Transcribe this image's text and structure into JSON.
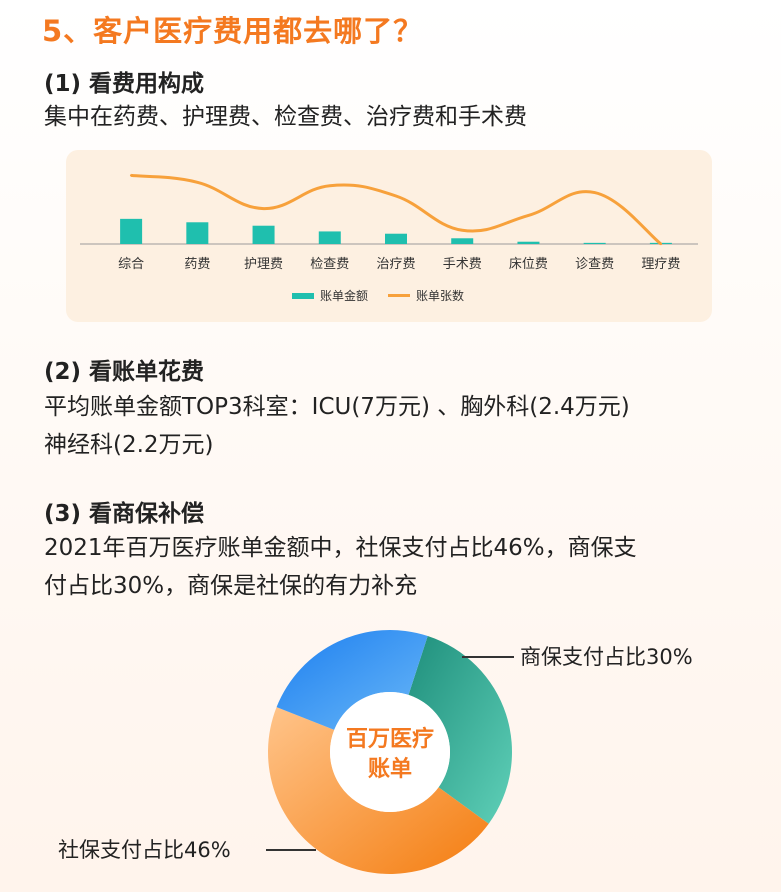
{
  "header": {
    "title": "5、客户医疗费用都去哪了？"
  },
  "section1": {
    "title": "(1) 看费用构成",
    "text": "集中在药费、护理费、检查费、治疗费和手术费"
  },
  "section2": {
    "title": "(2) 看账单花费",
    "line1": "平均账单金额TOP3科室：ICU(7万元) 、胸外科(2.4万元)",
    "line2": "神经科(2.2万元)"
  },
  "section3": {
    "title": "(3) 看商保补偿",
    "line1": "2021年百万医疗账单金额中，社保支付占比46%，商保支",
    "line2": "付占比30%，商保是社保的有力补充"
  },
  "colors": {
    "accent": "#f47920",
    "bar": "#1fbfae",
    "line": "#f7a13b"
  },
  "chart_data": [
    {
      "type": "bar",
      "categories": [
        "综合",
        "药费",
        "护理费",
        "检查费",
        "治疗费",
        "手术费",
        "床位费",
        "诊查费",
        "理疗费"
      ],
      "series": [
        {
          "name": "账单金额",
          "type": "bar",
          "values": [
            22,
            19,
            16,
            11,
            9,
            5,
            2,
            1,
            1
          ]
        },
        {
          "name": "账单张数",
          "type": "line",
          "values": [
            60,
            54,
            31,
            51,
            42,
            12,
            25,
            45,
            0
          ]
        }
      ],
      "ylim": [
        0,
        70
      ],
      "legend_position": "bottom",
      "grid": false
    },
    {
      "type": "pie",
      "center_label_line1": "百万医疗",
      "center_label_line2": "账单",
      "slices": [
        {
          "label": "商保支付占比30%",
          "value": 30,
          "color": "#2aa08a",
          "show_label": true
        },
        {
          "label": "社保支付占比46%",
          "value": 46,
          "color": "#f7922a",
          "show_label": true
        },
        {
          "label": "",
          "value": 24,
          "color": "#3a9cf2",
          "show_label": false
        }
      ]
    }
  ]
}
